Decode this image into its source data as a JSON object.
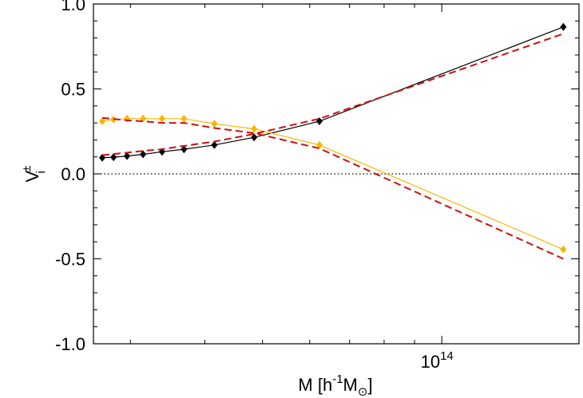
{
  "chart_data": {
    "type": "line",
    "x_scale": "log",
    "xlabel": "M [h⁻¹M⊙]",
    "ylabel": "V",
    "ylabel_superscript": "±",
    "ylabel_subscript": "i",
    "xlim": [
      26000000000000.0,
      170000000000000.0
    ],
    "ylim": [
      -1.0,
      1.0
    ],
    "x_ticks": [
      {
        "value": 100000000000000.0,
        "base": "10",
        "exp": "14"
      }
    ],
    "y_ticks": [
      {
        "value": 1.0,
        "label": "1.0"
      },
      {
        "value": 0.5,
        "label": "0.5"
      },
      {
        "value": 0.0,
        "label": "0.0"
      },
      {
        "value": -0.5,
        "label": "-0.5"
      },
      {
        "value": -1.0,
        "label": "-1.0"
      }
    ],
    "zero_line": {
      "y": 0.0,
      "style": "dotted"
    },
    "grid": false,
    "series": [
      {
        "style": "solid",
        "marker": "diamond",
        "color": "#000000",
        "x": [
          26900000000000.0,
          28100000000000.0,
          29600000000000.0,
          31500000000000.0,
          33900000000000.0,
          36900000000000.0,
          41500000000000.0,
          48400000000000.0,
          62300000000000.0,
          160000000000000.0
        ],
        "y": [
          0.095,
          0.098,
          0.105,
          0.115,
          0.13,
          0.145,
          0.17,
          0.215,
          0.31,
          0.865
        ]
      },
      {
        "style": "solid",
        "marker": "diamond",
        "color": "#f5b800",
        "x": [
          26900000000000.0,
          28100000000000.0,
          29600000000000.0,
          31500000000000.0,
          33900000000000.0,
          36900000000000.0,
          41500000000000.0,
          48400000000000.0,
          62300000000000.0,
          160000000000000.0
        ],
        "y": [
          0.31,
          0.32,
          0.325,
          0.325,
          0.325,
          0.325,
          0.295,
          0.265,
          0.17,
          -0.445
        ]
      },
      {
        "style": "dashed",
        "marker": "none",
        "color": "#cc1111",
        "x": [
          26900000000000.0,
          29600000000000.0,
          31500000000000.0,
          33900000000000.0,
          36900000000000.0,
          41500000000000.0,
          48400000000000.0,
          62300000000000.0,
          160000000000000.0
        ],
        "y": [
          0.11,
          0.125,
          0.135,
          0.145,
          0.165,
          0.19,
          0.235,
          0.325,
          0.825
        ]
      },
      {
        "style": "dashed",
        "marker": "none",
        "color": "#cc1111",
        "x": [
          26900000000000.0,
          29600000000000.0,
          31500000000000.0,
          33900000000000.0,
          36900000000000.0,
          41500000000000.0,
          48400000000000.0,
          62300000000000.0,
          160000000000000.0
        ],
        "y": [
          0.33,
          0.315,
          0.31,
          0.3,
          0.3,
          0.27,
          0.24,
          0.15,
          -0.5
        ]
      }
    ]
  }
}
